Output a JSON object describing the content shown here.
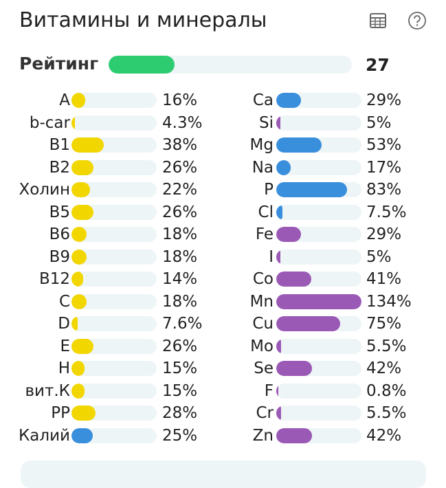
{
  "header": {
    "title": "Витамины и минералы"
  },
  "rating": {
    "label": "Рейтинг",
    "value": "27",
    "percent": 27,
    "color": "#2ecc71"
  },
  "colors": {
    "vitamin": "#f2d600",
    "blue": "#3a8fdd",
    "purple": "#9b59b6",
    "track": "#eef5f7"
  },
  "vitamins": [
    {
      "label": "A",
      "value": "16%",
      "percent": 16,
      "color": "yellow"
    },
    {
      "label": "b-car",
      "value": "4.3%",
      "percent": 4.3,
      "color": "yellow"
    },
    {
      "label": "B1",
      "value": "38%",
      "percent": 38,
      "color": "yellow"
    },
    {
      "label": "B2",
      "value": "26%",
      "percent": 26,
      "color": "yellow"
    },
    {
      "label": "Холин",
      "value": "22%",
      "percent": 22,
      "color": "yellow"
    },
    {
      "label": "B5",
      "value": "26%",
      "percent": 26,
      "color": "yellow"
    },
    {
      "label": "B6",
      "value": "18%",
      "percent": 18,
      "color": "yellow"
    },
    {
      "label": "B9",
      "value": "18%",
      "percent": 18,
      "color": "yellow"
    },
    {
      "label": "B12",
      "value": "14%",
      "percent": 14,
      "color": "yellow"
    },
    {
      "label": "C",
      "value": "18%",
      "percent": 18,
      "color": "yellow"
    },
    {
      "label": "D",
      "value": "7.6%",
      "percent": 7.6,
      "color": "yellow"
    },
    {
      "label": "E",
      "value": "26%",
      "percent": 26,
      "color": "yellow"
    },
    {
      "label": "H",
      "value": "15%",
      "percent": 15,
      "color": "yellow"
    },
    {
      "label": "вит.К",
      "value": "15%",
      "percent": 15,
      "color": "yellow"
    },
    {
      "label": "PP",
      "value": "28%",
      "percent": 28,
      "color": "yellow"
    },
    {
      "label": "Калий",
      "value": "25%",
      "percent": 25,
      "color": "blue"
    }
  ],
  "minerals": [
    {
      "label": "Ca",
      "value": "29%",
      "percent": 29,
      "color": "blue"
    },
    {
      "label": "Si",
      "value": "5%",
      "percent": 5,
      "color": "purple"
    },
    {
      "label": "Mg",
      "value": "53%",
      "percent": 53,
      "color": "blue"
    },
    {
      "label": "Na",
      "value": "17%",
      "percent": 17,
      "color": "blue"
    },
    {
      "label": "P",
      "value": "83%",
      "percent": 83,
      "color": "blue"
    },
    {
      "label": "Cl",
      "value": "7.5%",
      "percent": 7.5,
      "color": "blue"
    },
    {
      "label": "Fe",
      "value": "29%",
      "percent": 29,
      "color": "purple"
    },
    {
      "label": "I",
      "value": "5%",
      "percent": 5,
      "color": "purple"
    },
    {
      "label": "Co",
      "value": "41%",
      "percent": 41,
      "color": "purple"
    },
    {
      "label": "Mn",
      "value": "134%",
      "percent": 134,
      "color": "purple"
    },
    {
      "label": "Cu",
      "value": "75%",
      "percent": 75,
      "color": "purple"
    },
    {
      "label": "Mo",
      "value": "5.5%",
      "percent": 5.5,
      "color": "purple"
    },
    {
      "label": "Se",
      "value": "42%",
      "percent": 42,
      "color": "purple"
    },
    {
      "label": "F",
      "value": "0.8%",
      "percent": 0.8,
      "color": "purple"
    },
    {
      "label": "Cr",
      "value": "5.5%",
      "percent": 5.5,
      "color": "purple"
    },
    {
      "label": "Zn",
      "value": "42%",
      "percent": 42,
      "color": "purple"
    }
  ]
}
